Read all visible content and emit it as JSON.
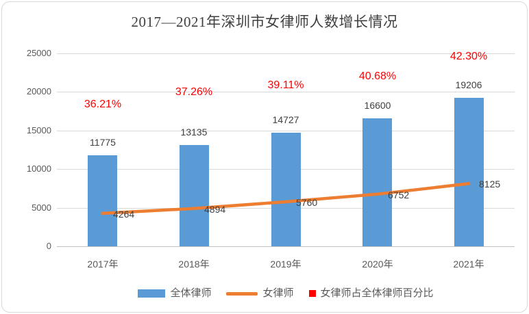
{
  "title": "2017—2021年深圳市女律师人数增长情况",
  "chart_data": {
    "type": "bar",
    "title": "2017—2021年深圳市女律师人数增长情况",
    "categories": [
      "2017年",
      "2018年",
      "2019年",
      "2020年",
      "2021年"
    ],
    "series": [
      {
        "name": "全体律师",
        "type": "bar",
        "color": "#5b9bd5",
        "values": [
          11775,
          13135,
          14727,
          16600,
          19206
        ]
      },
      {
        "name": "女律师",
        "type": "line",
        "color": "#ed7d31",
        "values": [
          4264,
          4894,
          5760,
          6752,
          8125
        ]
      },
      {
        "name": "女律师占全体律师百分比",
        "type": "percent-labels",
        "color": "#ff0000",
        "values": [
          "36.21%",
          "37.26%",
          "39.11%",
          "40.68%",
          "42.30%"
        ]
      }
    ],
    "xlabel": "",
    "ylabel": "",
    "ylim": [
      0,
      25000
    ],
    "yticks": [
      0,
      5000,
      10000,
      15000,
      20000,
      25000
    ],
    "grid": true,
    "legend_position": "bottom"
  },
  "colors": {
    "bar": "#5b9bd5",
    "line": "#ed7d31",
    "percent": "#ff0000",
    "gridline": "#d9d9d9",
    "axis_text": "#595959",
    "value_text": "#404040"
  }
}
